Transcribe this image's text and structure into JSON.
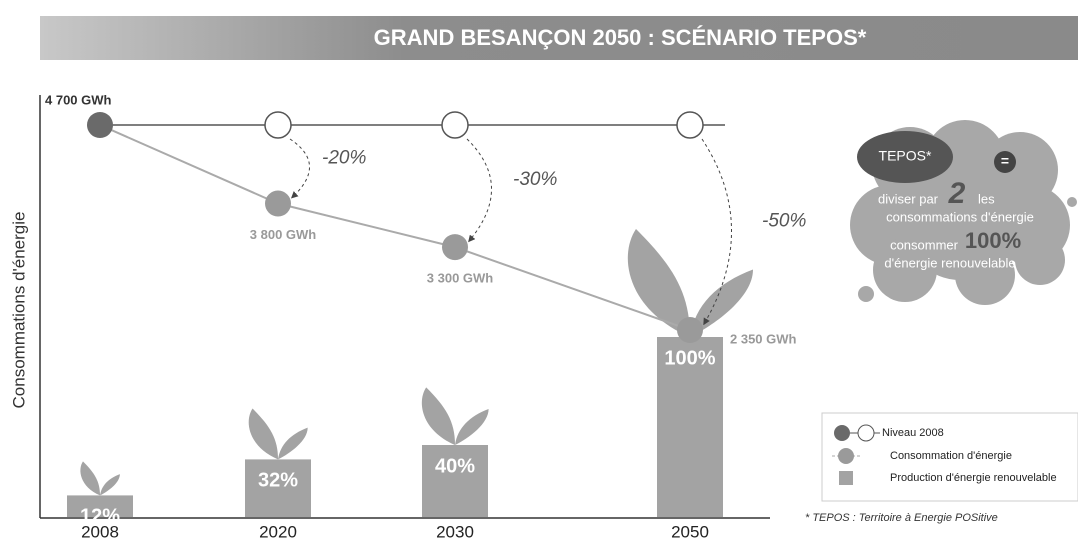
{
  "title": "GRAND BESANÇON 2050 : SCÉNARIO TEPOS*",
  "chart_data": {
    "type": "bar",
    "y_label": "Consommations d'énergie",
    "categories": [
      "2008",
      "2020",
      "2030",
      "2050"
    ],
    "series": [
      {
        "name": "Production d'énergie renouvelable",
        "color": "#a3a3a3",
        "values": [
          12,
          32,
          40,
          100
        ],
        "value_labels": [
          "12%",
          "32%",
          "40%",
          "100%"
        ]
      }
    ],
    "consumption": {
      "name": "Consommation d'énergie",
      "color": "#9a9a9a",
      "values": [
        4700,
        3800,
        3300,
        2350
      ],
      "value_labels": [
        "4 700 GWh",
        "3 800 GWh",
        "3 300 GWh",
        "2 350 GWh"
      ]
    },
    "level": {
      "name": "Niveau 2008",
      "color": "#6a6a6a"
    },
    "reductions": [
      "-20%",
      "-30%",
      "-50%"
    ]
  },
  "tepos": {
    "badge": "TEPOS*",
    "equals": "=",
    "line1": "diviser par",
    "big1": "2",
    "line1_end": "les",
    "line2": "consommations d'énergie",
    "line3": "consommer",
    "big2": "100%",
    "line4": "d'énergie renouvelable"
  },
  "footnote": "* TEPOS : Territoire à Energie POSitive"
}
